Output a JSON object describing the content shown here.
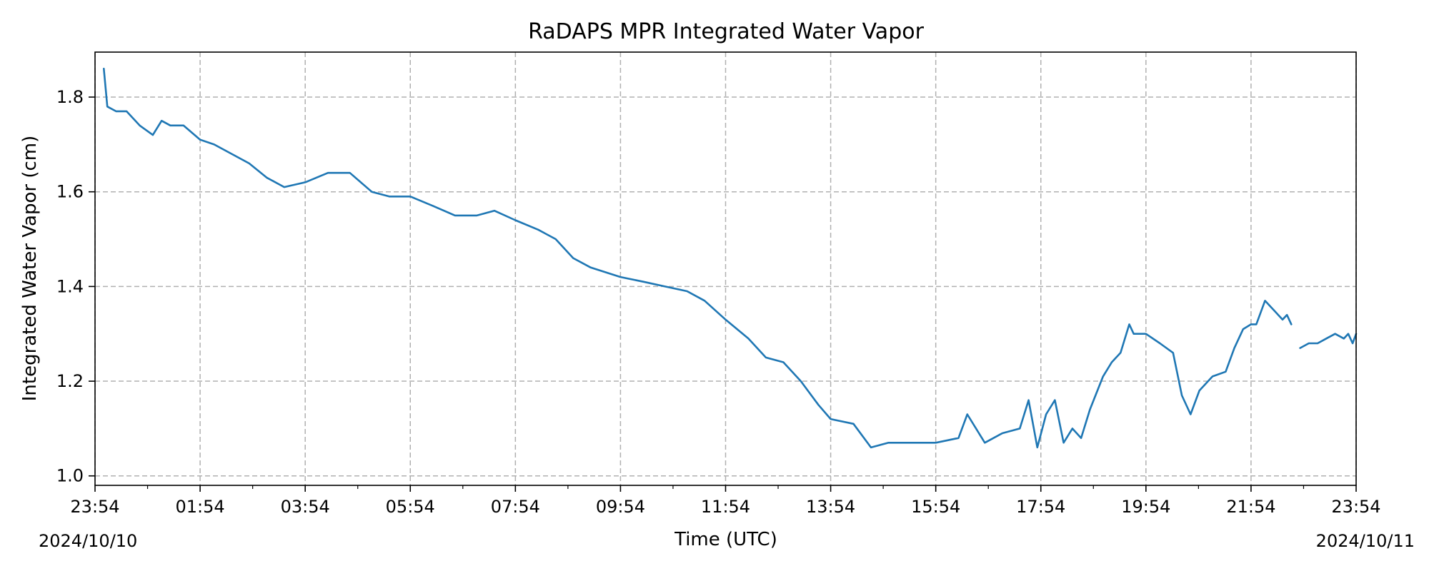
{
  "chart_data": {
    "type": "line",
    "title": "RaDAPS MPR Integrated Water Vapor",
    "xlabel": "Time (UTC)",
    "ylabel": "Integrated Water Vapor (cm)",
    "xlim": [
      "2024-10-10 23:54",
      "2024-10-11 23:54"
    ],
    "ylim": [
      0.98,
      1.895
    ],
    "xticks": [
      {
        "time": "2024-10-10 23:54",
        "label": "23:54"
      },
      {
        "time": "2024-10-11 01:54",
        "label": "01:54"
      },
      {
        "time": "2024-10-11 03:54",
        "label": "03:54"
      },
      {
        "time": "2024-10-11 05:54",
        "label": "05:54"
      },
      {
        "time": "2024-10-11 07:54",
        "label": "07:54"
      },
      {
        "time": "2024-10-11 09:54",
        "label": "09:54"
      },
      {
        "time": "2024-10-11 11:54",
        "label": "11:54"
      },
      {
        "time": "2024-10-11 13:54",
        "label": "13:54"
      },
      {
        "time": "2024-10-11 15:54",
        "label": "15:54"
      },
      {
        "time": "2024-10-11 17:54",
        "label": "17:54"
      },
      {
        "time": "2024-10-11 19:54",
        "label": "19:54"
      },
      {
        "time": "2024-10-11 21:54",
        "label": "21:54"
      },
      {
        "time": "2024-10-11 23:54",
        "label": "23:54"
      }
    ],
    "minor_xticks": [
      "2024-10-11 00:54",
      "2024-10-11 02:54",
      "2024-10-11 04:54",
      "2024-10-11 06:54",
      "2024-10-11 08:54",
      "2024-10-11 10:54",
      "2024-10-11 12:54",
      "2024-10-11 14:54",
      "2024-10-11 16:54",
      "2024-10-11 18:54",
      "2024-10-11 20:54",
      "2024-10-11 22:54"
    ],
    "date_labels": {
      "start": "2024/10/10",
      "end": "2024/10/11"
    },
    "yticks": [
      1.0,
      1.2,
      1.4,
      1.6,
      1.8
    ],
    "ytick_labels": [
      "1.0",
      "1.2",
      "1.4",
      "1.6",
      "1.8"
    ],
    "grid": true,
    "legend": "none",
    "series": [
      {
        "color": "#1f77b4",
        "segments": [
          {
            "x": [
              "2024-10-11 00:04",
              "2024-10-11 00:08",
              "2024-10-11 00:18",
              "2024-10-11 00:30",
              "2024-10-11 00:45",
              "2024-10-11 01:00",
              "2024-10-11 01:10",
              "2024-10-11 01:20",
              "2024-10-11 01:35",
              "2024-10-11 01:54",
              "2024-10-11 02:10",
              "2024-10-11 02:30",
              "2024-10-11 02:50",
              "2024-10-11 03:10",
              "2024-10-11 03:30",
              "2024-10-11 03:54",
              "2024-10-11 04:20",
              "2024-10-11 04:45",
              "2024-10-11 05:10",
              "2024-10-11 05:30",
              "2024-10-11 05:54",
              "2024-10-11 06:20",
              "2024-10-11 06:45",
              "2024-10-11 07:10",
              "2024-10-11 07:30",
              "2024-10-11 07:54",
              "2024-10-11 08:20",
              "2024-10-11 08:40",
              "2024-10-11 09:00",
              "2024-10-11 09:20",
              "2024-10-11 09:54",
              "2024-10-11 10:20",
              "2024-10-11 10:45",
              "2024-10-11 11:10",
              "2024-10-11 11:30",
              "2024-10-11 11:54",
              "2024-10-11 12:20",
              "2024-10-11 12:40",
              "2024-10-11 13:00",
              "2024-10-11 13:20",
              "2024-10-11 13:40",
              "2024-10-11 13:54",
              "2024-10-11 14:20",
              "2024-10-11 14:40",
              "2024-10-11 15:00",
              "2024-10-11 15:20",
              "2024-10-11 15:54",
              "2024-10-11 16:20",
              "2024-10-11 16:30",
              "2024-10-11 16:50",
              "2024-10-11 17:10",
              "2024-10-11 17:30",
              "2024-10-11 17:40",
              "2024-10-11 17:50",
              "2024-10-11 18:00",
              "2024-10-11 18:10",
              "2024-10-11 18:20",
              "2024-10-11 18:30",
              "2024-10-11 18:40",
              "2024-10-11 18:50",
              "2024-10-11 19:05",
              "2024-10-11 19:15",
              "2024-10-11 19:25",
              "2024-10-11 19:35",
              "2024-10-11 19:40",
              "2024-10-11 19:54",
              "2024-10-11 20:10",
              "2024-10-11 20:25",
              "2024-10-11 20:35",
              "2024-10-11 20:45",
              "2024-10-11 20:55",
              "2024-10-11 21:10",
              "2024-10-11 21:25",
              "2024-10-11 21:35",
              "2024-10-11 21:45",
              "2024-10-11 21:54",
              "2024-10-11 22:00",
              "2024-10-11 22:10",
              "2024-10-11 22:20",
              "2024-10-11 22:30",
              "2024-10-11 22:35",
              "2024-10-11 22:40"
            ],
            "y": [
              1.86,
              1.78,
              1.77,
              1.77,
              1.74,
              1.72,
              1.75,
              1.74,
              1.74,
              1.71,
              1.7,
              1.68,
              1.66,
              1.63,
              1.61,
              1.62,
              1.64,
              1.64,
              1.6,
              1.59,
              1.59,
              1.57,
              1.55,
              1.55,
              1.56,
              1.54,
              1.52,
              1.5,
              1.46,
              1.44,
              1.42,
              1.41,
              1.4,
              1.39,
              1.37,
              1.33,
              1.29,
              1.25,
              1.24,
              1.2,
              1.15,
              1.12,
              1.11,
              1.06,
              1.07,
              1.07,
              1.07,
              1.08,
              1.13,
              1.07,
              1.09,
              1.1,
              1.16,
              1.06,
              1.13,
              1.16,
              1.07,
              1.1,
              1.08,
              1.14,
              1.21,
              1.24,
              1.26,
              1.32,
              1.3,
              1.3,
              1.28,
              1.26,
              1.17,
              1.13,
              1.18,
              1.21,
              1.22,
              1.27,
              1.31,
              1.32,
              1.32,
              1.37,
              1.35,
              1.33,
              1.34,
              1.32
            ]
          },
          {
            "x": [
              "2024-10-11 22:50",
              "2024-10-11 23:00",
              "2024-10-11 23:10",
              "2024-10-11 23:20",
              "2024-10-11 23:30",
              "2024-10-11 23:40",
              "2024-10-11 23:45",
              "2024-10-11 23:50",
              "2024-10-11 23:54"
            ],
            "y": [
              1.27,
              1.28,
              1.28,
              1.29,
              1.3,
              1.29,
              1.3,
              1.28,
              1.3
            ]
          }
        ]
      }
    ]
  }
}
